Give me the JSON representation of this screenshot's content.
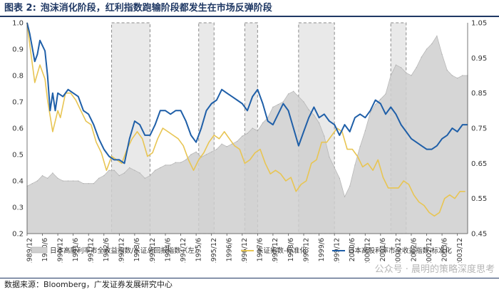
{
  "figure": {
    "label": "图表 2:",
    "title": "泡沫消化阶段，红利指数跑输阶段都发生在市场反弹阶段",
    "source": "数据来源：Bloomberg，广发证券发展研究中心",
    "watermark": "公众号 · 晨明的策略深度思考"
  },
  "colors": {
    "area": "#cfcfcf",
    "blue": "#1f5fa8",
    "gold": "#e8c553",
    "shade": "#e2e2e2",
    "shade_border": "#8a8a8a",
    "title": "#1f3864"
  },
  "chart_data": {
    "type": "line",
    "left_axis": {
      "min": 0.2,
      "max": 1.0,
      "ticks": [
        "0.2",
        "0.3",
        "0.4",
        "0.5",
        "0.6",
        "0.7",
        "0.8",
        "0.9",
        "1.0"
      ]
    },
    "right_axis": {
      "min": 0.45,
      "max": 1.05,
      "ticks": [
        "0.45",
        "0.55",
        "0.65",
        "0.75",
        "0.85",
        "0.95",
        "1.05"
      ]
    },
    "x_range": [
      1989.917,
      2004.25
    ],
    "x_ticks": [
      "1989/12",
      "1990/6",
      "1990/12",
      "1991/6",
      "1991/12",
      "1992/6",
      "1992/12",
      "1993/6",
      "1993/12",
      "1994/6",
      "1994/12",
      "1995/6",
      "1995/12",
      "1996/6",
      "1996/12",
      "1997/6",
      "1997/12",
      "1998/6",
      "1998/12",
      "1999/6",
      "1999/12",
      "2000/6",
      "2000/12",
      "2001/6",
      "2001/12",
      "2002/6",
      "2002/12",
      "2003/6",
      "2003/12"
    ],
    "shaded_periods": [
      [
        "1992/9",
        "1993/12"
      ],
      [
        "1995/7",
        "1996/1"
      ],
      [
        "1997/1",
        "1997/6"
      ],
      [
        "1998/10",
        "1999/12"
      ],
      [
        "2001/10",
        "2002/4"
      ]
    ],
    "legend": [
      {
        "name": "日本高股利率市全收益指数/东证总回报指数（左）",
        "kind": "area"
      },
      {
        "name": "东证指数-标准化",
        "kind": "gold"
      },
      {
        "name": "日本高股利率市全收益指数-标准化",
        "kind": "blue"
      }
    ],
    "series": [
      {
        "name": "日本高股利率市全收益指数/东证总回报指数（左）",
        "axis": "left",
        "points": [
          [
            "1989/12",
            0.38
          ],
          [
            "1990/2",
            0.39
          ],
          [
            "1990/4",
            0.4
          ],
          [
            "1990/6",
            0.42
          ],
          [
            "1990/8",
            0.41
          ],
          [
            "1990/10",
            0.43
          ],
          [
            "1990/12",
            0.41
          ],
          [
            "1991/2",
            0.4
          ],
          [
            "1991/4",
            0.4
          ],
          [
            "1991/6",
            0.4
          ],
          [
            "1991/8",
            0.4
          ],
          [
            "1991/10",
            0.39
          ],
          [
            "1991/12",
            0.39
          ],
          [
            "1992/2",
            0.39
          ],
          [
            "1992/4",
            0.41
          ],
          [
            "1992/6",
            0.42
          ],
          [
            "1992/8",
            0.44
          ],
          [
            "1992/10",
            0.44
          ],
          [
            "1992/12",
            0.42
          ],
          [
            "1993/2",
            0.43
          ],
          [
            "1993/4",
            0.45
          ],
          [
            "1993/6",
            0.44
          ],
          [
            "1993/8",
            0.43
          ],
          [
            "1993/10",
            0.41
          ],
          [
            "1993/12",
            0.42
          ],
          [
            "1994/2",
            0.44
          ],
          [
            "1994/4",
            0.45
          ],
          [
            "1994/6",
            0.46
          ],
          [
            "1994/8",
            0.46
          ],
          [
            "1994/10",
            0.47
          ],
          [
            "1994/12",
            0.47
          ],
          [
            "1995/2",
            0.48
          ],
          [
            "1995/4",
            0.5
          ],
          [
            "1995/6",
            0.51
          ],
          [
            "1995/8",
            0.49
          ],
          [
            "1995/10",
            0.5
          ],
          [
            "1995/12",
            0.51
          ],
          [
            "1996/2",
            0.52
          ],
          [
            "1996/4",
            0.54
          ],
          [
            "1996/6",
            0.53
          ],
          [
            "1996/8",
            0.54
          ],
          [
            "1996/10",
            0.55
          ],
          [
            "1996/12",
            0.57
          ],
          [
            "1997/2",
            0.58
          ],
          [
            "1997/4",
            0.6
          ],
          [
            "1997/6",
            0.59
          ],
          [
            "1997/8",
            0.62
          ],
          [
            "1997/10",
            0.64
          ],
          [
            "1997/12",
            0.68
          ],
          [
            "1998/2",
            0.69
          ],
          [
            "1998/4",
            0.7
          ],
          [
            "1998/6",
            0.73
          ],
          [
            "1998/8",
            0.74
          ],
          [
            "1998/10",
            0.72
          ],
          [
            "1998/12",
            0.7
          ],
          [
            "1999/2",
            0.67
          ],
          [
            "1999/4",
            0.65
          ],
          [
            "1999/6",
            0.62
          ],
          [
            "1999/8",
            0.57
          ],
          [
            "1999/10",
            0.49
          ],
          [
            "1999/12",
            0.45
          ],
          [
            "2000/2",
            0.41
          ],
          [
            "2000/4",
            0.34
          ],
          [
            "2000/6",
            0.38
          ],
          [
            "2000/8",
            0.46
          ],
          [
            "2000/10",
            0.53
          ],
          [
            "2000/12",
            0.59
          ],
          [
            "2001/2",
            0.66
          ],
          [
            "2001/4",
            0.69
          ],
          [
            "2001/6",
            0.71
          ],
          [
            "2001/8",
            0.73
          ],
          [
            "2001/10",
            0.8
          ],
          [
            "2001/12",
            0.84
          ],
          [
            "2002/2",
            0.83
          ],
          [
            "2002/4",
            0.81
          ],
          [
            "2002/6",
            0.8
          ],
          [
            "2002/8",
            0.83
          ],
          [
            "2002/10",
            0.87
          ],
          [
            "2002/12",
            0.9
          ],
          [
            "2003/2",
            0.92
          ],
          [
            "2003/4",
            0.95
          ],
          [
            "2003/6",
            0.88
          ],
          [
            "2003/8",
            0.82
          ],
          [
            "2003/10",
            0.8
          ],
          [
            "2003/12",
            0.79
          ],
          [
            "2004/2",
            0.8
          ],
          [
            "2004/4",
            0.8
          ]
        ]
      },
      {
        "name": "东证指数-标准化",
        "axis": "right",
        "points": [
          [
            "1989/12",
            1.05
          ],
          [
            "1990/1",
            0.99
          ],
          [
            "1990/3",
            0.88
          ],
          [
            "1990/5",
            0.93
          ],
          [
            "1990/7",
            0.89
          ],
          [
            "1990/8",
            0.83
          ],
          [
            "1990/10",
            0.74
          ],
          [
            "1990/12",
            0.8
          ],
          [
            "1991/1",
            0.78
          ],
          [
            "1991/3",
            0.85
          ],
          [
            "1991/5",
            0.85
          ],
          [
            "1991/7",
            0.83
          ],
          [
            "1991/9",
            0.8
          ],
          [
            "1991/11",
            0.77
          ],
          [
            "1992/1",
            0.76
          ],
          [
            "1992/3",
            0.71
          ],
          [
            "1992/5",
            0.68
          ],
          [
            "1992/7",
            0.63
          ],
          [
            "1992/9",
            0.67
          ],
          [
            "1992/11",
            0.66
          ],
          [
            "1993/1",
            0.65
          ],
          [
            "1993/3",
            0.69
          ],
          [
            "1993/5",
            0.72
          ],
          [
            "1993/7",
            0.74
          ],
          [
            "1993/9",
            0.72
          ],
          [
            "1993/11",
            0.67
          ],
          [
            "1994/1",
            0.68
          ],
          [
            "1994/3",
            0.72
          ],
          [
            "1994/5",
            0.75
          ],
          [
            "1994/7",
            0.74
          ],
          [
            "1994/9",
            0.73
          ],
          [
            "1994/11",
            0.72
          ],
          [
            "1995/1",
            0.7
          ],
          [
            "1995/3",
            0.66
          ],
          [
            "1995/5",
            0.63
          ],
          [
            "1995/7",
            0.66
          ],
          [
            "1995/9",
            0.68
          ],
          [
            "1995/11",
            0.71
          ],
          [
            "1996/1",
            0.73
          ],
          [
            "1996/3",
            0.72
          ],
          [
            "1996/5",
            0.74
          ],
          [
            "1996/7",
            0.72
          ],
          [
            "1996/9",
            0.7
          ],
          [
            "1996/11",
            0.69
          ],
          [
            "1997/1",
            0.65
          ],
          [
            "1997/3",
            0.66
          ],
          [
            "1997/5",
            0.68
          ],
          [
            "1997/7",
            0.69
          ],
          [
            "1997/9",
            0.65
          ],
          [
            "1997/11",
            0.62
          ],
          [
            "1998/1",
            0.63
          ],
          [
            "1998/3",
            0.62
          ],
          [
            "1998/5",
            0.6
          ],
          [
            "1998/7",
            0.61
          ],
          [
            "1998/9",
            0.57
          ],
          [
            "1998/11",
            0.59
          ],
          [
            "1999/1",
            0.6
          ],
          [
            "1999/3",
            0.65
          ],
          [
            "1999/5",
            0.66
          ],
          [
            "1999/7",
            0.71
          ],
          [
            "1999/9",
            0.71
          ],
          [
            "1999/11",
            0.73
          ],
          [
            "2000/1",
            0.75
          ],
          [
            "2000/3",
            0.74
          ],
          [
            "2000/5",
            0.69
          ],
          [
            "2000/7",
            0.69
          ],
          [
            "2000/9",
            0.67
          ],
          [
            "2000/11",
            0.64
          ],
          [
            "2001/1",
            0.65
          ],
          [
            "2001/3",
            0.63
          ],
          [
            "2001/5",
            0.66
          ],
          [
            "2001/7",
            0.61
          ],
          [
            "2001/9",
            0.58
          ],
          [
            "2001/11",
            0.58
          ],
          [
            "2002/1",
            0.58
          ],
          [
            "2002/3",
            0.6
          ],
          [
            "2002/5",
            0.59
          ],
          [
            "2002/7",
            0.56
          ],
          [
            "2002/9",
            0.54
          ],
          [
            "2002/11",
            0.53
          ],
          [
            "2003/1",
            0.51
          ],
          [
            "2003/3",
            0.5
          ],
          [
            "2003/5",
            0.51
          ],
          [
            "2003/7",
            0.55
          ],
          [
            "2003/9",
            0.56
          ],
          [
            "2003/11",
            0.55
          ],
          [
            "2004/1",
            0.57
          ],
          [
            "2004/3",
            0.57
          ]
        ]
      },
      {
        "name": "日本高股利率市全收益指数-标准化",
        "axis": "right",
        "points": [
          [
            "1989/12",
            1.05
          ],
          [
            "1990/1",
            1.02
          ],
          [
            "1990/3",
            0.94
          ],
          [
            "1990/4",
            0.96
          ],
          [
            "1990/5",
            1.0
          ],
          [
            "1990/7",
            0.97
          ],
          [
            "1990/8",
            0.9
          ],
          [
            "1990/9",
            0.8
          ],
          [
            "1990/10",
            0.85
          ],
          [
            "1990/11",
            0.8
          ],
          [
            "1990/12",
            0.85
          ],
          [
            "1991/2",
            0.84
          ],
          [
            "1991/4",
            0.86
          ],
          [
            "1991/6",
            0.85
          ],
          [
            "1991/8",
            0.84
          ],
          [
            "1991/10",
            0.8
          ],
          [
            "1991/12",
            0.79
          ],
          [
            "1992/2",
            0.76
          ],
          [
            "1992/4",
            0.72
          ],
          [
            "1992/6",
            0.69
          ],
          [
            "1992/8",
            0.67
          ],
          [
            "1992/10",
            0.66
          ],
          [
            "1992/12",
            0.66
          ],
          [
            "1993/2",
            0.65
          ],
          [
            "1993/4",
            0.72
          ],
          [
            "1993/6",
            0.77
          ],
          [
            "1993/8",
            0.76
          ],
          [
            "1993/10",
            0.73
          ],
          [
            "1993/12",
            0.73
          ],
          [
            "1994/2",
            0.76
          ],
          [
            "1994/4",
            0.8
          ],
          [
            "1994/6",
            0.8
          ],
          [
            "1994/8",
            0.79
          ],
          [
            "1994/10",
            0.8
          ],
          [
            "1994/12",
            0.8
          ],
          [
            "1995/2",
            0.77
          ],
          [
            "1995/4",
            0.73
          ],
          [
            "1995/6",
            0.71
          ],
          [
            "1995/8",
            0.75
          ],
          [
            "1995/10",
            0.8
          ],
          [
            "1995/12",
            0.82
          ],
          [
            "1996/2",
            0.83
          ],
          [
            "1996/4",
            0.86
          ],
          [
            "1996/6",
            0.85
          ],
          [
            "1996/8",
            0.84
          ],
          [
            "1996/10",
            0.83
          ],
          [
            "1996/12",
            0.82
          ],
          [
            "1997/2",
            0.8
          ],
          [
            "1997/4",
            0.84
          ],
          [
            "1997/6",
            0.86
          ],
          [
            "1997/8",
            0.82
          ],
          [
            "1997/10",
            0.77
          ],
          [
            "1997/12",
            0.76
          ],
          [
            "1998/2",
            0.79
          ],
          [
            "1998/4",
            0.82
          ],
          [
            "1998/6",
            0.8
          ],
          [
            "1998/8",
            0.75
          ],
          [
            "1998/10",
            0.7
          ],
          [
            "1998/12",
            0.74
          ],
          [
            "1999/2",
            0.78
          ],
          [
            "1999/4",
            0.81
          ],
          [
            "1999/6",
            0.78
          ],
          [
            "1999/8",
            0.79
          ],
          [
            "1999/10",
            0.77
          ],
          [
            "1999/12",
            0.76
          ],
          [
            "2000/2",
            0.73
          ],
          [
            "2000/4",
            0.76
          ],
          [
            "2000/6",
            0.74
          ],
          [
            "2000/8",
            0.78
          ],
          [
            "2000/10",
            0.79
          ],
          [
            "2000/12",
            0.78
          ],
          [
            "2001/2",
            0.8
          ],
          [
            "2001/4",
            0.83
          ],
          [
            "2001/6",
            0.82
          ],
          [
            "2001/8",
            0.79
          ],
          [
            "2001/10",
            0.81
          ],
          [
            "2001/12",
            0.79
          ],
          [
            "2002/2",
            0.76
          ],
          [
            "2002/4",
            0.74
          ],
          [
            "2002/6",
            0.72
          ],
          [
            "2002/8",
            0.71
          ],
          [
            "2002/10",
            0.7
          ],
          [
            "2002/12",
            0.69
          ],
          [
            "2003/2",
            0.69
          ],
          [
            "2003/4",
            0.7
          ],
          [
            "2003/6",
            0.72
          ],
          [
            "2003/8",
            0.73
          ],
          [
            "2003/10",
            0.75
          ],
          [
            "2003/12",
            0.74
          ],
          [
            "2004/2",
            0.76
          ],
          [
            "2004/4",
            0.76
          ]
        ]
      }
    ]
  }
}
